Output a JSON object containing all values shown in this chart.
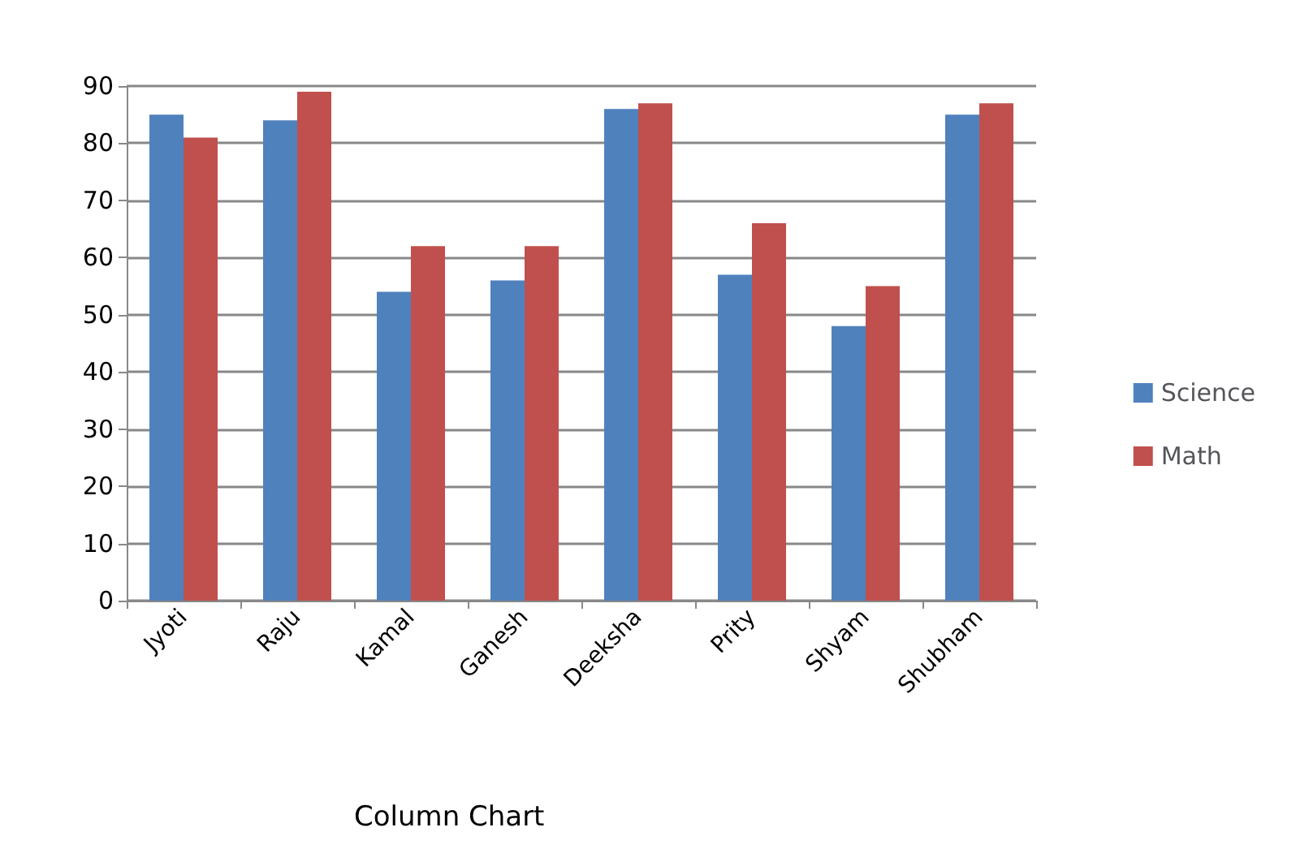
{
  "chart_data": {
    "type": "bar",
    "categories": [
      "Jyoti",
      "Raju",
      "Kamal",
      "Ganesh",
      "Deeksha",
      "Prity",
      "Shyam",
      "Shubham"
    ],
    "series": [
      {
        "name": "Science",
        "color": "#4f81bd",
        "values": [
          85,
          84,
          54,
          56,
          86,
          57,
          48,
          85
        ]
      },
      {
        "name": "Math",
        "color": "#c0504d",
        "values": [
          81,
          89,
          62,
          62,
          87,
          66,
          55,
          87
        ]
      }
    ],
    "ylim": [
      0,
      90
    ],
    "yticks": [
      0,
      10,
      20,
      30,
      40,
      50,
      60,
      70,
      80,
      90
    ],
    "grid": "y",
    "legend": "right",
    "annotations": [
      "Column Chart"
    ]
  }
}
